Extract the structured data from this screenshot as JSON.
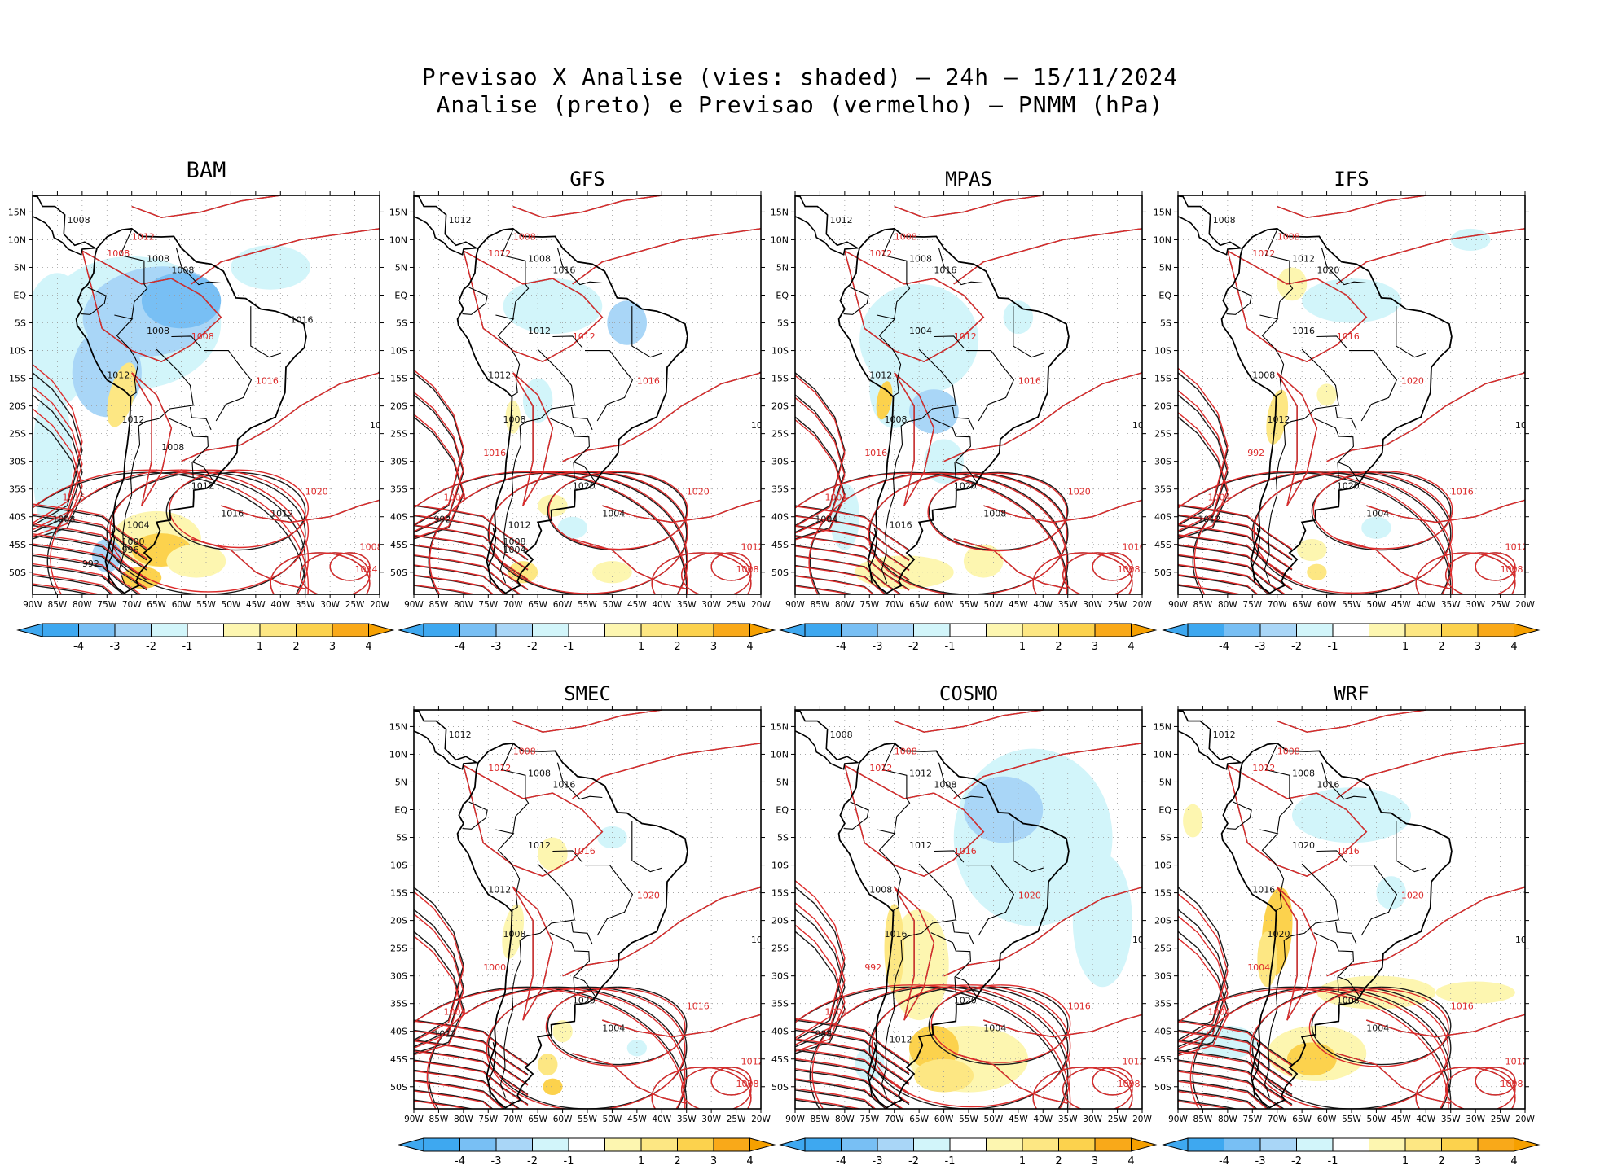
{
  "figure": {
    "title_line1": "Previsao X Analise (vies: shaded) – 24h – 15/11/2024",
    "title_line2": "Analise (preto) e Previsao (vermelho) – PNMM (hPa)"
  },
  "axes": {
    "lat_labels": [
      "15N",
      "10N",
      "5N",
      "EQ",
      "5S",
      "10S",
      "15S",
      "20S",
      "25S",
      "30S",
      "35S",
      "40S",
      "45S",
      "50S"
    ],
    "lon_labels": [
      "90W",
      "85W",
      "80W",
      "75W",
      "70W",
      "65W",
      "60W",
      "55W",
      "50W",
      "45W",
      "40W",
      "35W",
      "30W",
      "25W",
      "20W"
    ]
  },
  "colorbar": {
    "labels": [
      "-4",
      "-3",
      "-2",
      "-1",
      "1",
      "2",
      "3",
      "4"
    ],
    "colors": [
      "#3ea8f0",
      "#78bff4",
      "#a9d6f7",
      "#d2f5fa",
      "#ffffff",
      "#fdf6b0",
      "#fde783",
      "#fcd24d",
      "#f9a919",
      "#f6a000"
    ]
  },
  "panels": [
    {
      "id": "bam",
      "model": "BAM",
      "black_labels": [
        "1008",
        "1008",
        "1012",
        "1012",
        "1008",
        "1008",
        "1012",
        "1016",
        "1020",
        "1016",
        "1008",
        "1004",
        "1000",
        "996",
        "992",
        "1016",
        "1012",
        "1008"
      ],
      "red_labels": [
        "1008",
        "1012",
        "1008",
        "1016",
        "1020",
        "1008",
        "1004",
        "1016"
      ]
    },
    {
      "id": "gfs",
      "model": "GFS",
      "black_labels": [
        "1012",
        "1008",
        "1012",
        "1008",
        "1012",
        "1016",
        "1020",
        "1016",
        "1008",
        "1004",
        "992",
        "1012",
        "1008",
        "1004"
      ],
      "red_labels": [
        "1012",
        "1008",
        "1012",
        "1016",
        "1020",
        "1012",
        "1008",
        "1004",
        "1016"
      ]
    },
    {
      "id": "mpas",
      "model": "MPAS",
      "black_labels": [
        "1012",
        "1008",
        "1012",
        "1008",
        "1004",
        "1016",
        "1020",
        "1016",
        "1012",
        "1008",
        "1004",
        "1016"
      ],
      "red_labels": [
        "1012",
        "1008",
        "1012",
        "1016",
        "1020",
        "1016",
        "1008",
        "1004",
        "1016"
      ]
    },
    {
      "id": "ifs",
      "model": "IFS",
      "black_labels": [
        "1008",
        "1012",
        "1008",
        "1012",
        "1016",
        "1020",
        "1020",
        "1016",
        "1008",
        "1004",
        "1012"
      ],
      "red_labels": [
        "1012",
        "1008",
        "1016",
        "1020",
        "1016",
        "1012",
        "1008",
        "1004",
        "992"
      ]
    },
    {
      "id": "smec",
      "model": "SMEC",
      "black_labels": [
        "1012",
        "1008",
        "1012",
        "1008",
        "1012",
        "1016",
        "1020",
        "1016",
        "1008",
        "1004",
        "1012"
      ],
      "red_labels": [
        "1012",
        "1008",
        "1016",
        "1020",
        "1016",
        "1012",
        "1008",
        "1004",
        "1000"
      ]
    },
    {
      "id": "cosmo",
      "model": "COSMO",
      "black_labels": [
        "1008",
        "1012",
        "1008",
        "1016",
        "1012",
        "1008",
        "1020",
        "1016",
        "1008",
        "1004",
        "988",
        "1012"
      ],
      "red_labels": [
        "1012",
        "1008",
        "1016",
        "1020",
        "1016",
        "1012",
        "1008",
        "1004",
        "992"
      ]
    },
    {
      "id": "wrf",
      "model": "WRF",
      "black_labels": [
        "1012",
        "1008",
        "1016",
        "1020",
        "1020",
        "1016",
        "1008",
        "1004",
        "1012",
        "1004"
      ],
      "red_labels": [
        "1012",
        "1008",
        "1016",
        "1020",
        "1016",
        "1012",
        "1008",
        "1004",
        "1004"
      ]
    }
  ]
}
